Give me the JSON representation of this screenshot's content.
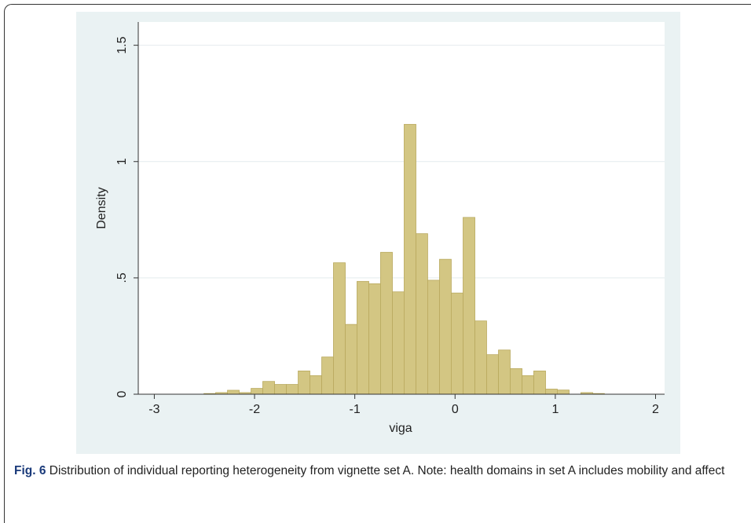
{
  "chart_data": {
    "type": "histogram",
    "x_label": "viga",
    "y_label": "Density",
    "bins": [
      -2.505,
      -2.388,
      -2.27,
      -2.153,
      -2.035,
      -1.918,
      -1.8,
      -1.683,
      -1.565,
      -1.448,
      -1.33,
      -1.213,
      -1.095,
      -0.978,
      -0.86,
      -0.743,
      -0.625,
      -0.508,
      -0.39,
      -0.273,
      -0.155,
      -0.038,
      0.08,
      0.198,
      0.315,
      0.433,
      0.55,
      0.668,
      0.785,
      0.903,
      1.02,
      1.138,
      1.255,
      1.373,
      1.49
    ],
    "values": [
      0.003,
      0.007,
      0.017,
      0.007,
      0.025,
      0.055,
      0.042,
      0.042,
      0.1,
      0.08,
      0.16,
      0.565,
      0.3,
      0.485,
      0.475,
      0.61,
      0.44,
      1.16,
      0.69,
      0.49,
      0.58,
      0.435,
      0.76,
      0.315,
      0.17,
      0.19,
      0.11,
      0.08,
      0.1,
      0.022,
      0.018,
      0,
      0.007,
      0.003
    ],
    "color": "#d3c683",
    "xlim": [
      -3.16,
      2.09
    ],
    "xticks": [
      -3,
      -2,
      -1,
      0,
      1,
      2
    ],
    "ylim": [
      0,
      1.6
    ],
    "yticks": [
      0,
      {
        "value": 0.5,
        "label": ".5"
      },
      1,
      1.5
    ],
    "grid": true,
    "caption_label": "Fig. 6",
    "caption": "Distribution of individual reporting heterogeneity from vignette set A. Note: health domains in set A includes mobility and affect"
  }
}
